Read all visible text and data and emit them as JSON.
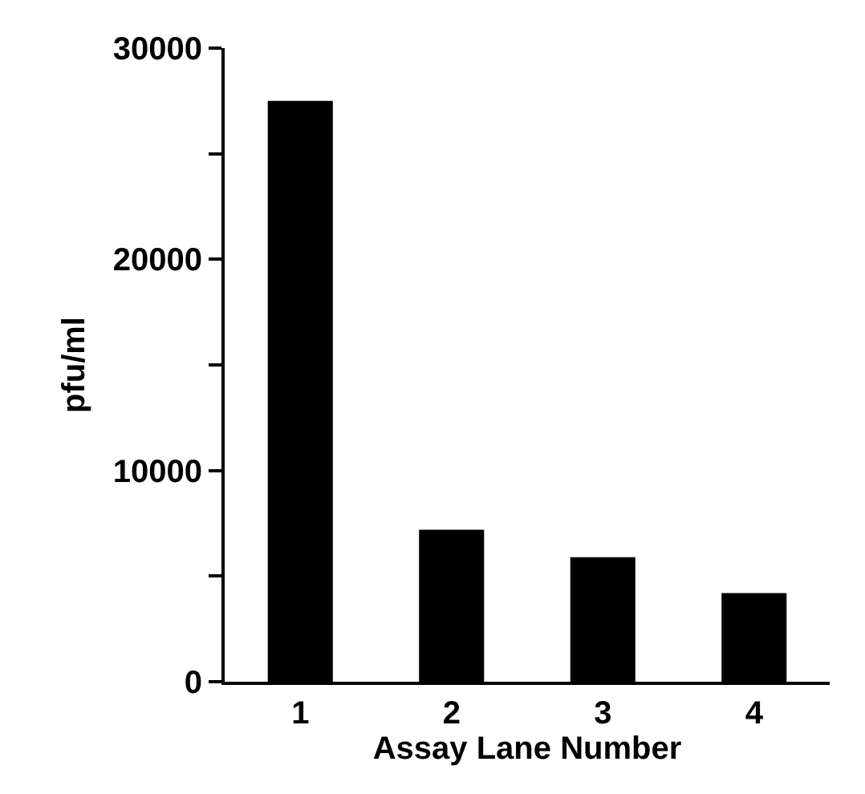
{
  "chart_data": {
    "type": "bar",
    "xlabel": "Assay Lane Number",
    "ylabel": "pfu/ml",
    "categories": [
      "1",
      "2",
      "3",
      "4"
    ],
    "values": [
      27500,
      7200,
      5900,
      4200
    ],
    "color": "#000000",
    "ylim": [
      0,
      30000
    ],
    "yticks": [
      0,
      {
        "value": 5000,
        "label": null
      },
      10000,
      {
        "value": 15000,
        "label": null
      },
      20000,
      {
        "value": 25000,
        "label": null
      },
      30000
    ],
    "grid": false
  }
}
